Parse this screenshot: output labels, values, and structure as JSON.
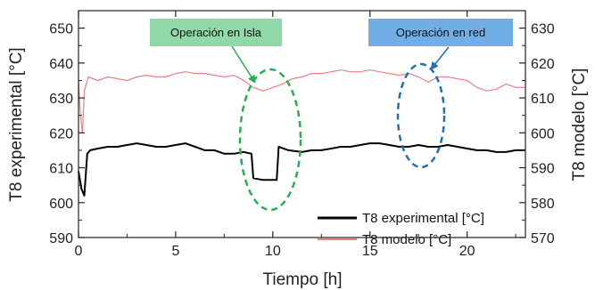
{
  "chart_data": {
    "type": "line",
    "xlabel": "Tiempo [h]",
    "ylabel_left": "T8 experimental [°C]",
    "ylabel_right": "T8 modelo [°C]",
    "xlim": [
      0,
      23
    ],
    "ylim_left": [
      590,
      655
    ],
    "ylim_right": [
      570,
      635
    ],
    "x_ticks": [
      0,
      5,
      10,
      15,
      20
    ],
    "y_left_ticks": [
      590,
      600,
      610,
      620,
      630,
      640,
      650
    ],
    "y_right_ticks": [
      570,
      580,
      590,
      600,
      610,
      620,
      630
    ],
    "legend_position": "bottom-right",
    "series": [
      {
        "name": "T8 experimental [°C]",
        "axis": "left",
        "color": "#000000",
        "x": [
          0,
          0.15,
          0.3,
          0.45,
          0.6,
          1.0,
          1.5,
          2.0,
          2.5,
          3.0,
          3.5,
          4.0,
          4.5,
          5.0,
          5.5,
          6.0,
          6.5,
          7.0,
          7.5,
          8.0,
          8.5,
          8.9,
          9.0,
          9.5,
          10.0,
          10.2,
          10.3,
          10.8,
          11.5,
          12.0,
          12.5,
          13.0,
          13.5,
          14.0,
          14.5,
          15.0,
          15.5,
          16.0,
          16.5,
          17.0,
          17.5,
          18.0,
          18.5,
          19.0,
          19.5,
          20.0,
          20.5,
          21.0,
          21.5,
          22.0,
          22.5,
          23.0
        ],
        "y": [
          609,
          604,
          602,
          614,
          615,
          615.5,
          616,
          616,
          616.5,
          617,
          616.5,
          616,
          616,
          616.5,
          617,
          616,
          615,
          615,
          614,
          614,
          614.5,
          614,
          607,
          606.5,
          606.5,
          606.5,
          616,
          615,
          614.5,
          615,
          615,
          615.5,
          616,
          616,
          616.5,
          617,
          617,
          616.5,
          616,
          616,
          616.5,
          616,
          616,
          616.5,
          616,
          615.5,
          615,
          615,
          614.5,
          614.5,
          615,
          615
        ]
      },
      {
        "name": "T8 modelo [°C]",
        "axis": "right",
        "color": "#f08080",
        "x": [
          0,
          0.1,
          0.2,
          0.3,
          0.5,
          1.0,
          1.5,
          2.0,
          2.5,
          3.0,
          3.5,
          4.0,
          4.5,
          5.0,
          5.5,
          6.0,
          6.5,
          7.0,
          7.5,
          8.0,
          8.5,
          9.0,
          9.5,
          10.0,
          10.5,
          11.0,
          11.5,
          12.0,
          12.5,
          13.0,
          13.5,
          14.0,
          14.5,
          15.0,
          15.5,
          16.0,
          16.5,
          17.0,
          17.5,
          18.0,
          18.5,
          19.0,
          19.5,
          20.0,
          20.5,
          21.0,
          21.5,
          22.0,
          22.5,
          23.0
        ],
        "y": [
          615,
          605,
          600,
          612,
          616,
          615,
          616,
          615.5,
          615,
          616,
          616.5,
          616,
          616,
          617,
          617.5,
          617,
          617,
          616.5,
          616,
          616.5,
          615,
          613,
          612,
          613,
          614,
          615.5,
          616,
          617,
          617,
          617.5,
          618,
          617.5,
          617.5,
          618,
          617.5,
          617,
          616.5,
          617,
          616,
          614.5,
          616,
          616,
          615.5,
          615,
          613,
          612,
          612.5,
          614,
          613,
          613
        ]
      }
    ],
    "annotations": [
      {
        "text": "Operación en Isla",
        "bg": "#90d8a8",
        "ellipse_color": "#22b14c"
      },
      {
        "text": "Operación en red",
        "bg": "#72aee6",
        "ellipse_color": "#1f6fb8"
      }
    ]
  }
}
